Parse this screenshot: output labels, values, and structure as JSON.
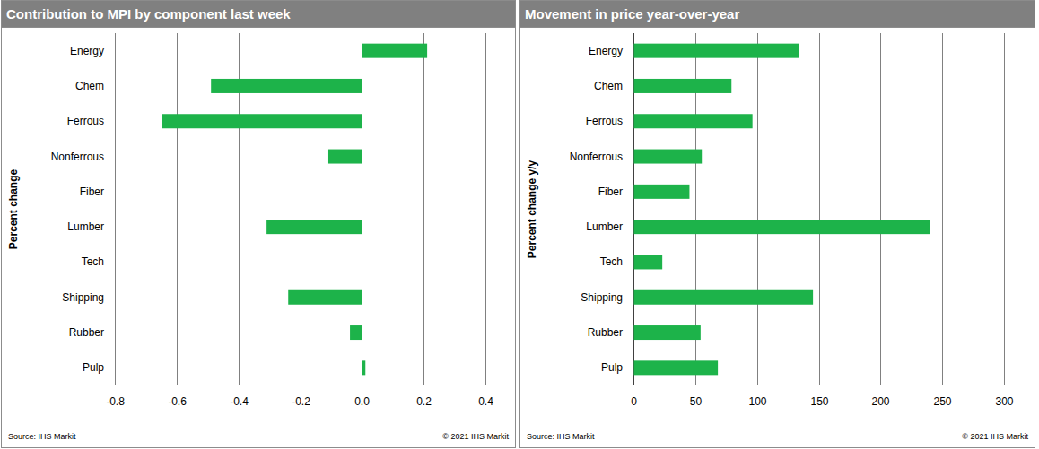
{
  "chart_data": [
    {
      "type": "bar",
      "orientation": "horizontal",
      "title": "Contribution to MPI by component last week",
      "ylabel": "Percent change",
      "categories": [
        "Energy",
        "Chem",
        "Ferrous",
        "Nonferrous",
        "Fiber",
        "Lumber",
        "Tech",
        "Shipping",
        "Rubber",
        "Pulp"
      ],
      "values": [
        0.21,
        -0.49,
        -0.65,
        -0.11,
        0,
        -0.31,
        0,
        -0.24,
        -0.04,
        0.01
      ],
      "color": "#1db34a",
      "xlim": [
        -0.8,
        0.4
      ],
      "xticks": [
        -0.8,
        -0.6,
        -0.4,
        -0.2,
        {
          "value": 0,
          "label": "0.0"
        },
        0.2,
        0.4
      ],
      "grid": true,
      "annotations": [
        "Source: IHS Markit",
        "© 2021 IHS Markit"
      ]
    },
    {
      "type": "bar",
      "orientation": "horizontal",
      "title": "Movement in price year-over-year",
      "ylabel": "Percent change y/y",
      "categories": [
        "Energy",
        "Chem",
        "Ferrous",
        "Nonferrous",
        "Fiber",
        "Lumber",
        "Tech",
        "Shipping",
        "Rubber",
        "Pulp"
      ],
      "values": [
        134,
        79,
        96,
        55,
        45,
        240,
        23,
        145,
        54,
        68
      ],
      "color": "#1db34a",
      "xlim": [
        0,
        300
      ],
      "xticks": [
        0,
        50,
        100,
        150,
        200,
        250,
        300
      ],
      "grid": true,
      "annotations": [
        "Source: IHS Markit",
        "© 2021 IHS Markit"
      ]
    }
  ]
}
